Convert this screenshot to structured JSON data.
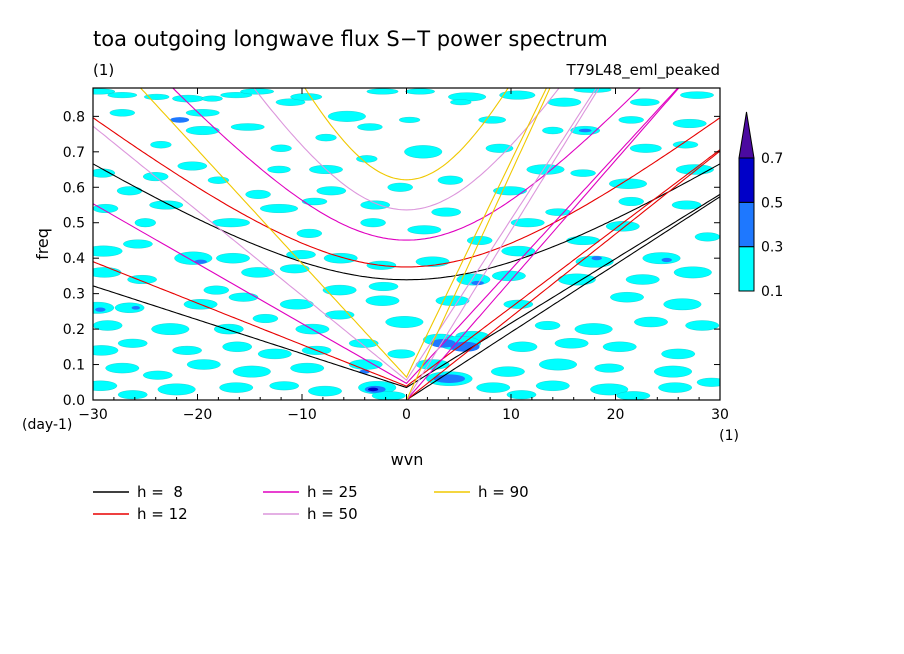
{
  "chart_data": {
    "type": "contour",
    "title": "toa outgoing longwave flux S−T power spectrum",
    "units_label": "(1)",
    "experiment_label": "T79L48_eml_peaked",
    "xlabel": "wvn",
    "ylabel": "freq",
    "x_unit": "(1)",
    "y_unit": "(day-1)",
    "xlim": [
      -30,
      30
    ],
    "ylim": [
      0,
      0.88
    ],
    "x_ticks": [
      -30,
      -20,
      -10,
      0,
      10,
      20,
      30
    ],
    "x_tick_labels": [
      "−30",
      "−20",
      "−10",
      "0",
      "10",
      "20",
      "30"
    ],
    "y_ticks": [
      0.0,
      0.1,
      0.2,
      0.3,
      0.4,
      0.5,
      0.6,
      0.7,
      0.8
    ],
    "y_tick_labels": [
      "0.0",
      "0.1",
      "0.2",
      "0.3",
      "0.4",
      "0.5",
      "0.6",
      "0.7",
      "0.8"
    ],
    "colorbar": {
      "levels": [
        "0.1",
        "0.3",
        "0.5",
        "0.7"
      ],
      "colors": [
        "#00ffff",
        "#1e78ff",
        "#0000c8",
        "#4b0aa0"
      ]
    },
    "dispersion_curves": [
      {
        "label": "h =  8",
        "h": 8,
        "color": "#000000"
      },
      {
        "label": "h = 12",
        "h": 12,
        "color": "#e80000"
      },
      {
        "label": "h = 25",
        "h": 25,
        "color": "#e000c0"
      },
      {
        "label": "h = 50",
        "h": 50,
        "color": "#dc96dc"
      },
      {
        "label": "h = 90",
        "h": 90,
        "color": "#f0c800"
      }
    ],
    "contour_blobs": [
      [
        -29.5,
        0.87,
        1.6,
        0.008,
        0
      ],
      [
        -27.2,
        0.86,
        1.4,
        0.008,
        0
      ],
      [
        -23.9,
        0.855,
        1.2,
        0.008,
        0
      ],
      [
        -20.9,
        0.85,
        1.5,
        0.01,
        0
      ],
      [
        -18.6,
        0.85,
        1.0,
        0.008,
        0
      ],
      [
        -16.3,
        0.86,
        1.5,
        0.008,
        0
      ],
      [
        -14.3,
        0.87,
        1.6,
        0.008,
        0
      ],
      [
        -11.1,
        0.84,
        1.4,
        0.01,
        0
      ],
      [
        -9.6,
        0.855,
        1.5,
        0.01,
        0
      ],
      [
        -5.7,
        0.8,
        1.8,
        0.015,
        0
      ],
      [
        -2.3,
        0.87,
        1.5,
        0.008,
        0
      ],
      [
        1.3,
        0.87,
        1.4,
        0.008,
        0
      ],
      [
        5.8,
        0.855,
        1.8,
        0.012,
        0
      ],
      [
        10.6,
        0.86,
        1.7,
        0.012,
        0
      ],
      [
        15.1,
        0.84,
        1.6,
        0.012,
        0
      ],
      [
        17.8,
        0.875,
        1.8,
        0.008,
        0
      ],
      [
        22.8,
        0.84,
        1.4,
        0.01,
        0
      ],
      [
        27.8,
        0.86,
        1.6,
        0.01,
        0
      ],
      [
        -27.2,
        0.81,
        1.2,
        0.01,
        0
      ],
      [
        -19.5,
        0.81,
        1.6,
        0.01,
        0
      ],
      [
        -21.7,
        0.79,
        0.9,
        0.008,
        1
      ],
      [
        -19.5,
        0.76,
        1.6,
        0.012,
        0
      ],
      [
        -15.2,
        0.77,
        1.6,
        0.01,
        0
      ],
      [
        -3.5,
        0.77,
        1.2,
        0.01,
        0
      ],
      [
        0.3,
        0.79,
        1.0,
        0.008,
        0
      ],
      [
        8.2,
        0.79,
        1.3,
        0.01,
        0
      ],
      [
        17.1,
        0.76,
        1.4,
        0.012,
        0
      ],
      [
        17.1,
        0.76,
        0.6,
        0.005,
        1
      ],
      [
        21.5,
        0.79,
        1.2,
        0.01,
        0
      ],
      [
        27.1,
        0.78,
        1.6,
        0.012,
        0
      ],
      [
        -7.7,
        0.74,
        1.0,
        0.01,
        0
      ],
      [
        -23.5,
        0.72,
        1.0,
        0.01,
        0
      ],
      [
        1.6,
        0.7,
        1.8,
        0.018,
        0
      ],
      [
        8.9,
        0.71,
        1.3,
        0.012,
        0
      ],
      [
        22.9,
        0.71,
        1.5,
        0.012,
        0
      ],
      [
        26.7,
        0.72,
        1.2,
        0.01,
        0
      ],
      [
        -29.1,
        0.64,
        1.2,
        0.012,
        0
      ],
      [
        -20.5,
        0.66,
        1.4,
        0.012,
        0
      ],
      [
        -12.2,
        0.65,
        1.1,
        0.01,
        0
      ],
      [
        -7.7,
        0.65,
        1.6,
        0.012,
        0
      ],
      [
        -3.8,
        0.68,
        1.0,
        0.01,
        0
      ],
      [
        4.2,
        0.62,
        1.2,
        0.012,
        0
      ],
      [
        13.3,
        0.65,
        1.8,
        0.014,
        0
      ],
      [
        16.9,
        0.64,
        1.2,
        0.01,
        0
      ],
      [
        27.6,
        0.65,
        1.8,
        0.014,
        0
      ],
      [
        -26.5,
        0.59,
        1.2,
        0.012,
        0
      ],
      [
        -14.2,
        0.58,
        1.2,
        0.012,
        0
      ],
      [
        -7.2,
        0.59,
        1.4,
        0.012,
        0
      ],
      [
        -0.6,
        0.6,
        1.2,
        0.012,
        0
      ],
      [
        9.9,
        0.59,
        1.6,
        0.012,
        0
      ],
      [
        21.2,
        0.61,
        1.8,
        0.014,
        0
      ],
      [
        -28.8,
        0.54,
        1.2,
        0.012,
        0
      ],
      [
        -25.0,
        0.5,
        1.0,
        0.012,
        0
      ],
      [
        -23.0,
        0.55,
        1.6,
        0.012,
        0
      ],
      [
        -12.2,
        0.54,
        1.8,
        0.012,
        0
      ],
      [
        -8.8,
        0.56,
        1.2,
        0.01,
        0
      ],
      [
        -3.0,
        0.55,
        1.4,
        0.012,
        0
      ],
      [
        3.8,
        0.53,
        1.4,
        0.012,
        0
      ],
      [
        11.6,
        0.5,
        1.6,
        0.012,
        0
      ],
      [
        14.5,
        0.53,
        1.2,
        0.01,
        0
      ],
      [
        21.5,
        0.56,
        1.2,
        0.012,
        0
      ],
      [
        26.8,
        0.55,
        1.4,
        0.012,
        0
      ],
      [
        -16.8,
        0.5,
        1.8,
        0.012,
        0
      ],
      [
        -3.2,
        0.5,
        1.2,
        0.012,
        0
      ],
      [
        1.7,
        0.48,
        1.6,
        0.012,
        0
      ],
      [
        20.7,
        0.49,
        1.6,
        0.014,
        0
      ],
      [
        16.9,
        0.45,
        1.6,
        0.012,
        0
      ],
      [
        28.8,
        0.46,
        1.2,
        0.012,
        0
      ],
      [
        -29.0,
        0.42,
        1.8,
        0.015,
        0
      ],
      [
        -25.7,
        0.44,
        1.4,
        0.012,
        0
      ],
      [
        -20.4,
        0.4,
        1.8,
        0.018,
        0
      ],
      [
        -19.7,
        0.39,
        0.6,
        0.006,
        1
      ],
      [
        -16.6,
        0.4,
        1.6,
        0.014,
        0
      ],
      [
        -10.1,
        0.41,
        1.4,
        0.012,
        0
      ],
      [
        -6.3,
        0.4,
        1.6,
        0.014,
        0
      ],
      [
        -2.4,
        0.38,
        1.4,
        0.012,
        0
      ],
      [
        2.5,
        0.39,
        1.6,
        0.014,
        0
      ],
      [
        10.7,
        0.42,
        1.6,
        0.014,
        0
      ],
      [
        18.0,
        0.39,
        1.8,
        0.016,
        0
      ],
      [
        18.2,
        0.4,
        0.5,
        0.006,
        1
      ],
      [
        24.4,
        0.4,
        1.8,
        0.016,
        0
      ],
      [
        24.9,
        0.395,
        0.5,
        0.006,
        1
      ],
      [
        -28.9,
        0.36,
        1.6,
        0.014,
        0
      ],
      [
        -25.3,
        0.34,
        1.4,
        0.012,
        0
      ],
      [
        -14.2,
        0.36,
        1.6,
        0.014,
        0
      ],
      [
        -10.7,
        0.37,
        1.4,
        0.012,
        0
      ],
      [
        -6.4,
        0.31,
        1.6,
        0.014,
        0
      ],
      [
        -2.2,
        0.32,
        1.4,
        0.012,
        0
      ],
      [
        6.4,
        0.34,
        1.6,
        0.016,
        0
      ],
      [
        6.8,
        0.33,
        0.6,
        0.006,
        1
      ],
      [
        9.8,
        0.35,
        1.6,
        0.014,
        0
      ],
      [
        16.3,
        0.34,
        1.8,
        0.016,
        0
      ],
      [
        22.6,
        0.34,
        1.6,
        0.014,
        0
      ],
      [
        27.4,
        0.36,
        1.8,
        0.016,
        0
      ],
      [
        -29.6,
        0.26,
        1.6,
        0.016,
        0
      ],
      [
        -29.3,
        0.255,
        0.5,
        0.006,
        1
      ],
      [
        -26.5,
        0.26,
        1.4,
        0.014,
        0
      ],
      [
        -25.9,
        0.26,
        0.4,
        0.005,
        1
      ],
      [
        -19.7,
        0.27,
        1.6,
        0.014,
        0
      ],
      [
        -15.6,
        0.29,
        1.4,
        0.012,
        0
      ],
      [
        -10.5,
        0.27,
        1.6,
        0.014,
        0
      ],
      [
        -6.4,
        0.24,
        1.4,
        0.012,
        0
      ],
      [
        -2.3,
        0.28,
        1.6,
        0.014,
        0
      ],
      [
        4.4,
        0.28,
        1.6,
        0.014,
        0
      ],
      [
        10.7,
        0.27,
        1.4,
        0.012,
        0
      ],
      [
        21.1,
        0.29,
        1.6,
        0.014,
        0
      ],
      [
        26.4,
        0.27,
        1.8,
        0.016,
        0
      ],
      [
        -28.6,
        0.21,
        1.4,
        0.014,
        0
      ],
      [
        -22.6,
        0.2,
        1.8,
        0.016,
        0
      ],
      [
        -17.0,
        0.2,
        1.4,
        0.014,
        0
      ],
      [
        -13.5,
        0.23,
        1.2,
        0.012,
        0
      ],
      [
        -9.0,
        0.2,
        1.6,
        0.014,
        0
      ],
      [
        -0.2,
        0.22,
        1.8,
        0.016,
        0
      ],
      [
        6.3,
        0.18,
        1.6,
        0.014,
        0
      ],
      [
        17.9,
        0.2,
        1.8,
        0.016,
        0
      ],
      [
        23.4,
        0.22,
        1.6,
        0.014,
        0
      ],
      [
        28.3,
        0.21,
        1.6,
        0.014,
        0
      ],
      [
        -29.2,
        0.14,
        1.6,
        0.014,
        0
      ],
      [
        -26.2,
        0.16,
        1.4,
        0.012,
        0
      ],
      [
        -21.0,
        0.14,
        1.4,
        0.012,
        0
      ],
      [
        -16.2,
        0.15,
        1.4,
        0.014,
        0
      ],
      [
        -12.6,
        0.13,
        1.6,
        0.014,
        0
      ],
      [
        -8.6,
        0.14,
        1.4,
        0.012,
        0
      ],
      [
        -4.1,
        0.16,
        1.4,
        0.012,
        0
      ],
      [
        3.2,
        0.17,
        1.6,
        0.016,
        0
      ],
      [
        3.5,
        0.16,
        1.2,
        0.012,
        1
      ],
      [
        5.6,
        0.15,
        1.4,
        0.014,
        1
      ],
      [
        5.1,
        0.16,
        2.0,
        0.02,
        0
      ],
      [
        11.1,
        0.15,
        1.4,
        0.014,
        0
      ],
      [
        15.8,
        0.16,
        1.6,
        0.014,
        0
      ],
      [
        20.4,
        0.15,
        1.6,
        0.014,
        0
      ],
      [
        26.0,
        0.13,
        1.6,
        0.014,
        0
      ],
      [
        -27.2,
        0.09,
        1.6,
        0.014,
        0
      ],
      [
        -23.8,
        0.07,
        1.4,
        0.012,
        0
      ],
      [
        -19.4,
        0.1,
        1.6,
        0.014,
        0
      ],
      [
        -14.8,
        0.08,
        1.8,
        0.016,
        0
      ],
      [
        -9.5,
        0.09,
        1.6,
        0.014,
        0
      ],
      [
        -3.9,
        0.1,
        1.6,
        0.014,
        0
      ],
      [
        -4.0,
        0.08,
        0.5,
        0.006,
        1
      ],
      [
        2.5,
        0.1,
        1.6,
        0.014,
        0
      ],
      [
        9.7,
        0.08,
        1.6,
        0.014,
        0
      ],
      [
        14.5,
        0.1,
        1.8,
        0.016,
        0
      ],
      [
        19.4,
        0.09,
        1.4,
        0.012,
        0
      ],
      [
        25.5,
        0.08,
        1.8,
        0.016,
        0
      ],
      [
        -29.3,
        0.04,
        1.6,
        0.014,
        0
      ],
      [
        -22.0,
        0.03,
        1.8,
        0.016,
        0
      ],
      [
        -16.3,
        0.035,
        1.6,
        0.014,
        0
      ],
      [
        -11.7,
        0.04,
        1.4,
        0.012,
        0
      ],
      [
        -7.8,
        0.025,
        1.6,
        0.014,
        0
      ],
      [
        -2.8,
        0.035,
        1.8,
        0.018,
        0
      ],
      [
        -3.0,
        0.03,
        1.0,
        0.01,
        1
      ],
      [
        -3.2,
        0.03,
        0.5,
        0.005,
        2
      ],
      [
        4.1,
        0.06,
        2.2,
        0.02,
        0
      ],
      [
        4.1,
        0.06,
        1.5,
        0.012,
        1
      ],
      [
        8.3,
        0.035,
        1.6,
        0.014,
        0
      ],
      [
        14.0,
        0.04,
        1.6,
        0.014,
        0
      ],
      [
        19.4,
        0.03,
        1.8,
        0.016,
        0
      ],
      [
        25.7,
        0.035,
        1.6,
        0.014,
        0
      ],
      [
        29.2,
        0.05,
        1.4,
        0.012,
        0
      ],
      [
        -26.2,
        0.015,
        1.4,
        0.012,
        0
      ],
      [
        -1.7,
        0.012,
        1.6,
        0.012,
        0
      ],
      [
        11.0,
        0.015,
        1.4,
        0.012,
        0
      ],
      [
        21.7,
        0.012,
        1.6,
        0.012,
        0
      ],
      [
        -24.0,
        0.63,
        1.2,
        0.012,
        0
      ],
      [
        -18.0,
        0.62,
        1.0,
        0.01,
        0
      ],
      [
        7.0,
        0.45,
        1.2,
        0.012,
        0
      ],
      [
        14.0,
        0.76,
        1.0,
        0.01,
        0
      ],
      [
        -12.0,
        0.71,
        1.0,
        0.01,
        0
      ],
      [
        -0.5,
        0.13,
        1.3,
        0.012,
        0
      ],
      [
        -18.2,
        0.31,
        1.2,
        0.012,
        0
      ],
      [
        13.5,
        0.21,
        1.2,
        0.012,
        0
      ],
      [
        -9.3,
        0.47,
        1.2,
        0.012,
        0
      ],
      [
        5.2,
        0.84,
        1.0,
        0.008,
        0
      ]
    ]
  }
}
